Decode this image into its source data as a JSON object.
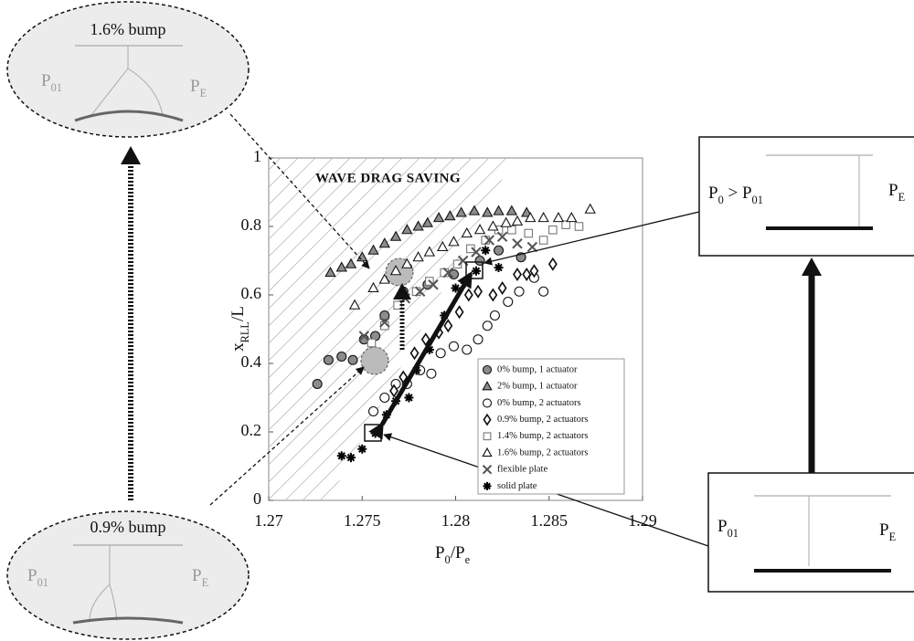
{
  "chart_data": {
    "type": "scatter",
    "annotation": "WAVE DRAG SAVING",
    "x_label": [
      {
        "text": "P"
      },
      {
        "sub": "0"
      },
      {
        "text": "/P"
      },
      {
        "sub": "e"
      }
    ],
    "y_label": [
      {
        "text": "x"
      },
      {
        "sub": "RLL"
      },
      {
        "text": "/L"
      }
    ],
    "xlim": [
      1.27,
      1.29
    ],
    "xticks": [
      1.27,
      1.275,
      1.28,
      1.285,
      1.29
    ],
    "ylim": [
      0,
      1
    ],
    "yticks": [
      0,
      0.2,
      0.4,
      0.6,
      0.8,
      1
    ],
    "grid": false,
    "legend": "lower right",
    "series": [
      {
        "name": "0% bump, 1 actuator",
        "marker": "circle",
        "color": "#8c8c8c",
        "x": [
          1.2726,
          1.2732,
          1.2739,
          1.2745,
          1.2751,
          1.2757,
          1.2762,
          1.2772,
          1.2785,
          1.2799,
          1.2813,
          1.2823,
          1.2835
        ],
        "values": [
          0.34,
          0.41,
          0.42,
          0.41,
          0.47,
          0.48,
          0.54,
          0.61,
          0.63,
          0.66,
          0.7,
          0.73,
          0.71
        ]
      },
      {
        "name": "2% bump, 1 actuator",
        "marker": "triangle",
        "color": "#8c8c8c",
        "x": [
          1.2733,
          1.2739,
          1.2744,
          1.275,
          1.2756,
          1.2762,
          1.2768,
          1.2774,
          1.278,
          1.2785,
          1.2791,
          1.2797,
          1.2803,
          1.281,
          1.2817,
          1.2823,
          1.283,
          1.2838
        ],
        "values": [
          0.665,
          0.68,
          0.69,
          0.71,
          0.73,
          0.75,
          0.77,
          0.79,
          0.8,
          0.81,
          0.825,
          0.83,
          0.84,
          0.845,
          0.84,
          0.845,
          0.845,
          0.84
        ]
      },
      {
        "name": "0% bump, 2 actuators",
        "marker": "circle",
        "color": "#ffffff",
        "x": [
          1.2756,
          1.2762,
          1.2768,
          1.2774,
          1.2781,
          1.2787,
          1.2792,
          1.2799,
          1.2806,
          1.2812,
          1.2817,
          1.2821,
          1.2828,
          1.2834,
          1.2842,
          1.2847
        ],
        "values": [
          0.26,
          0.3,
          0.34,
          0.34,
          0.38,
          0.37,
          0.43,
          0.45,
          0.44,
          0.47,
          0.51,
          0.54,
          0.58,
          0.61,
          0.65,
          0.61
        ]
      },
      {
        "name": "0.9% bump, 2 actuators",
        "marker": "diamond",
        "color": "#ffffff",
        "x": [
          1.2767,
          1.2772,
          1.2778,
          1.2784,
          1.2791,
          1.2796,
          1.2802,
          1.2807,
          1.2812,
          1.282,
          1.2825,
          1.2833,
          1.2838,
          1.2842,
          1.2852
        ],
        "values": [
          0.32,
          0.36,
          0.43,
          0.47,
          0.49,
          0.51,
          0.55,
          0.6,
          0.61,
          0.6,
          0.62,
          0.66,
          0.66,
          0.67,
          0.69
        ]
      },
      {
        "name": "1.4% bump, 2 actuators",
        "marker": "square",
        "color": "#ffffff",
        "x": [
          1.2755,
          1.2762,
          1.2769,
          1.2779,
          1.2786,
          1.2794,
          1.2801,
          1.2808,
          1.2816,
          1.2823,
          1.283,
          1.2839,
          1.2847,
          1.2852,
          1.2859,
          1.2866
        ],
        "values": [
          0.46,
          0.51,
          0.57,
          0.61,
          0.64,
          0.665,
          0.69,
          0.735,
          0.76,
          0.79,
          0.79,
          0.78,
          0.76,
          0.79,
          0.805,
          0.8
        ]
      },
      {
        "name": "1.6% bump, 2 actuators",
        "marker": "triangle",
        "color": "#ffffff",
        "x": [
          1.2746,
          1.2756,
          1.2762,
          1.2768,
          1.2774,
          1.278,
          1.2786,
          1.2793,
          1.2799,
          1.2806,
          1.2813,
          1.282,
          1.2827,
          1.2833,
          1.284,
          1.2847,
          1.2855,
          1.2862,
          1.2872
        ],
        "values": [
          0.57,
          0.62,
          0.645,
          0.67,
          0.69,
          0.71,
          0.725,
          0.74,
          0.755,
          0.78,
          0.79,
          0.8,
          0.81,
          0.815,
          0.825,
          0.825,
          0.825,
          0.825,
          0.85
        ]
      },
      {
        "name": "flexible plate",
        "marker": "x",
        "color": "#555555",
        "x": [
          1.2751,
          1.2762,
          1.2773,
          1.2781,
          1.2788,
          1.2796,
          1.2804,
          1.2811,
          1.2818,
          1.2825,
          1.2833,
          1.2841
        ],
        "values": [
          0.48,
          0.52,
          0.59,
          0.61,
          0.63,
          0.665,
          0.7,
          0.725,
          0.76,
          0.77,
          0.75,
          0.74
        ]
      },
      {
        "name": "solid plate",
        "marker": "asterisk",
        "color": "#000000",
        "x": [
          1.2739,
          1.2744,
          1.275,
          1.2757,
          1.2763,
          1.2768,
          1.2775,
          1.2779,
          1.2786,
          1.2794,
          1.28,
          1.2805,
          1.2811,
          1.2816,
          1.2823
        ],
        "values": [
          0.13,
          0.125,
          0.15,
          0.196,
          0.25,
          0.29,
          0.3,
          0.38,
          0.44,
          0.54,
          0.62,
          0.635,
          0.67,
          0.73,
          0.68
        ]
      }
    ]
  },
  "diagrams": {
    "top_left": {
      "title": "1.6% bump",
      "left": [
        {
          "text": "P"
        },
        {
          "sub": "01"
        }
      ],
      "right": [
        {
          "text": "P"
        },
        {
          "sub": "E"
        }
      ]
    },
    "bottom_left": {
      "title": "0.9% bump",
      "left": [
        {
          "text": "P"
        },
        {
          "sub": "01"
        }
      ],
      "right": [
        {
          "text": "P"
        },
        {
          "sub": "E"
        }
      ]
    },
    "top_right": {
      "left": [
        {
          "text": "P"
        },
        {
          "sub": "0"
        },
        {
          "text": " > P"
        },
        {
          "sub": "01"
        }
      ],
      "right": [
        {
          "text": "P"
        },
        {
          "sub": "E"
        }
      ]
    },
    "bottom_right": {
      "left": [
        {
          "text": "P"
        },
        {
          "sub": "01"
        }
      ],
      "right": [
        {
          "text": "P"
        },
        {
          "sub": "E"
        }
      ]
    }
  }
}
